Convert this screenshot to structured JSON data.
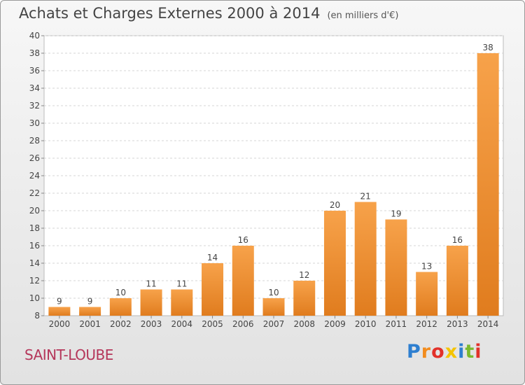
{
  "header": {
    "title": "Achats et Charges Externes 2000 à 2014",
    "unit": "(en milliers d'€)"
  },
  "footer": {
    "commune": "SAINT-LOUBE",
    "logo": {
      "letters": [
        "P",
        "r",
        "o",
        "x",
        "i",
        "t",
        "i"
      ],
      "colors": [
        "#2e7fd0",
        "#f28c1e",
        "#e2312a",
        "#f5c400",
        "#2e7fd0",
        "#7cb92f",
        "#e2312a"
      ]
    }
  },
  "chart_data": {
    "type": "bar",
    "categories": [
      "2000",
      "2001",
      "2002",
      "2003",
      "2004",
      "2005",
      "2006",
      "2007",
      "2008",
      "2009",
      "2010",
      "2011",
      "2012",
      "2013",
      "2014"
    ],
    "values": [
      9,
      9,
      10,
      11,
      11,
      14,
      16,
      10,
      12,
      20,
      21,
      19,
      13,
      16,
      38
    ],
    "ylim": [
      8,
      40
    ],
    "yticks": [
      8,
      10,
      12,
      14,
      16,
      18,
      20,
      22,
      24,
      26,
      28,
      30,
      32,
      34,
      36,
      38,
      40
    ],
    "grid": "horizontal dashed",
    "bar_color_top": "#f7a24a",
    "bar_color_bottom": "#e07c1e"
  }
}
